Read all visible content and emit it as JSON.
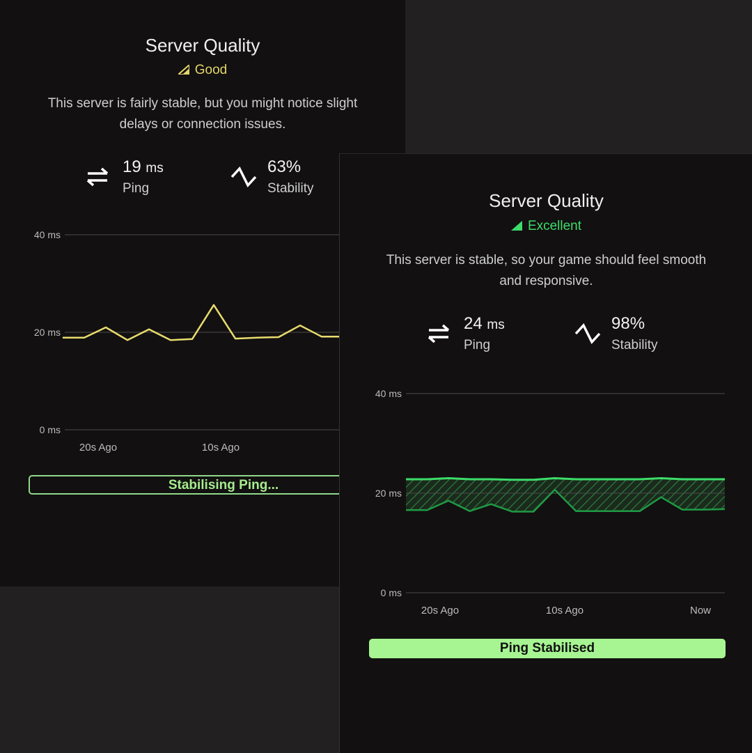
{
  "left_panel": {
    "title": "Server Quality",
    "rating": "Good",
    "rating_color": "#e3d56a",
    "description_line1": "This server is fairly stable, but you might notice slight",
    "description_line2": "delays or connection issues.",
    "ping_value": "19",
    "ping_unit": "ms",
    "ping_label": "Ping",
    "stability_value": "63%",
    "stability_label": "Stability",
    "status_button": "Stabilising Ping...",
    "icons": [
      "signal-icon",
      "swap-arrows-icon",
      "zigzag-icon"
    ]
  },
  "right_panel": {
    "title": "Server Quality",
    "rating": "Excellent",
    "rating_color": "#3ddc6a",
    "description_line1": "This server is stable, so your game should feel smooth",
    "description_line2": "and responsive.",
    "ping_value": "24",
    "ping_unit": "ms",
    "ping_label": "Ping",
    "stability_value": "98%",
    "stability_label": "Stability",
    "status_button": "Ping Stabilised",
    "icons": [
      "signal-icon",
      "swap-arrows-icon",
      "zigzag-icon"
    ]
  },
  "chart_data": [
    {
      "type": "line",
      "yticks": [
        "40 ms",
        "20 ms",
        "0 ms"
      ],
      "ylim": [
        0,
        40
      ],
      "xticks": [
        "20s Ago",
        "10s Ago"
      ],
      "grid": true,
      "line_color": "#e8dc6e",
      "values": [
        18.9,
        18.9,
        21,
        18.4,
        20.6,
        18.4,
        18.6,
        25.6,
        18.7,
        18.9,
        19,
        21.4,
        19.1,
        19.1
      ]
    },
    {
      "type": "area",
      "yticks": [
        "40 ms",
        "20 ms",
        "0 ms"
      ],
      "ylim": [
        0,
        40
      ],
      "xticks": [
        "20s Ago",
        "10s Ago",
        "Now"
      ],
      "grid": true,
      "upper_color": "#3ddc6a",
      "lower_color": "#1f9a45",
      "upper": [
        22.8,
        22.8,
        23.0,
        22.8,
        22.8,
        22.7,
        22.7,
        23.0,
        22.8,
        22.8,
        22.8,
        22.8,
        23.0,
        22.8,
        22.8,
        22.8
      ],
      "lower": [
        16.6,
        16.6,
        18.5,
        16.4,
        17.8,
        16.3,
        16.3,
        20.7,
        16.4,
        16.4,
        16.4,
        16.4,
        19.2,
        16.7,
        16.7,
        16.8
      ]
    }
  ]
}
